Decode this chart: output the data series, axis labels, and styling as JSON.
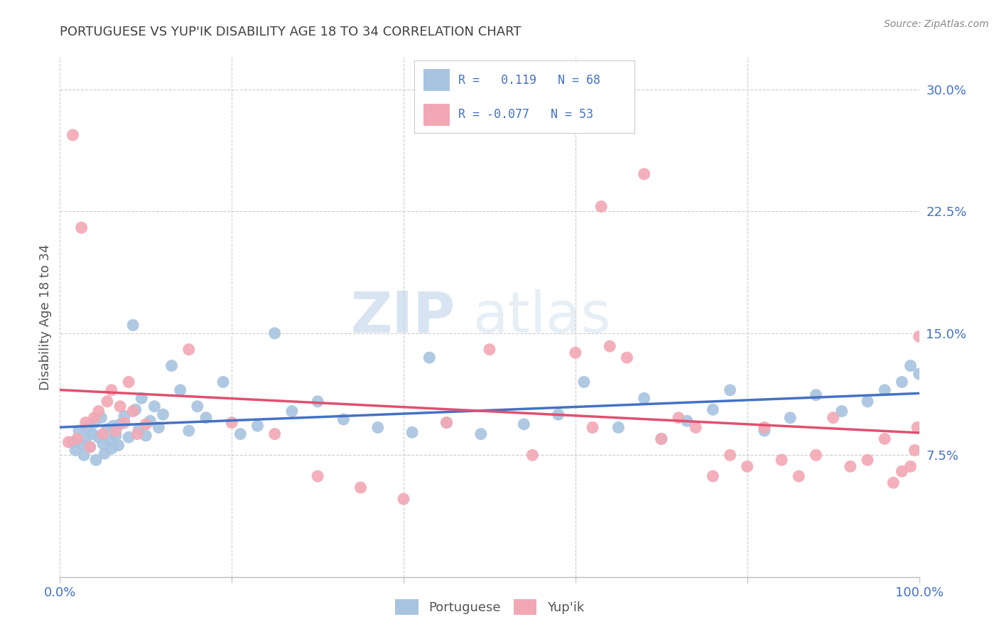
{
  "title": "PORTUGUESE VS YUP'IK DISABILITY AGE 18 TO 34 CORRELATION CHART",
  "source": "Source: ZipAtlas.com",
  "ylabel": "Disability Age 18 to 34",
  "xlim": [
    0.0,
    1.0
  ],
  "ylim": [
    0.0,
    0.32
  ],
  "xtick_positions": [
    0.0,
    0.2,
    0.4,
    0.6,
    0.8,
    1.0
  ],
  "xtick_labels": [
    "0.0%",
    "",
    "",
    "",
    "",
    "100.0%"
  ],
  "ytick_vals": [
    0.075,
    0.15,
    0.225,
    0.3
  ],
  "ytick_labels": [
    "7.5%",
    "15.0%",
    "22.5%",
    "30.0%"
  ],
  "watermark_zip": "ZIP",
  "watermark_atlas": "atlas",
  "portuguese_R": 0.119,
  "portuguese_N": 68,
  "yupik_R": -0.077,
  "yupik_N": 53,
  "portuguese_color": "#a8c4e0",
  "yupik_color": "#f2a8b4",
  "portuguese_line_color": "#4472c4",
  "yupik_line_color": "#e05070",
  "portuguese_line_dashed": false,
  "yupik_line_dashed": false,
  "background_color": "#ffffff",
  "grid_color": "#cccccc",
  "title_color": "#404040",
  "axis_label_color": "#4472c4",
  "xtick_color": "#4472c4",
  "legend_border_color": "#cccccc",
  "port_x": [
    0.015,
    0.018,
    0.022,
    0.025,
    0.028,
    0.03,
    0.032,
    0.035,
    0.038,
    0.04,
    0.042,
    0.045,
    0.048,
    0.05,
    0.052,
    0.055,
    0.058,
    0.06,
    0.062,
    0.065,
    0.068,
    0.07,
    0.075,
    0.08,
    0.085,
    0.088,
    0.092,
    0.095,
    0.1,
    0.105,
    0.11,
    0.115,
    0.12,
    0.13,
    0.14,
    0.15,
    0.16,
    0.17,
    0.19,
    0.21,
    0.23,
    0.25,
    0.27,
    0.3,
    0.33,
    0.37,
    0.41,
    0.45,
    0.49,
    0.54,
    0.58,
    0.61,
    0.65,
    0.68,
    0.7,
    0.73,
    0.76,
    0.78,
    0.82,
    0.85,
    0.88,
    0.91,
    0.94,
    0.96,
    0.98,
    0.99,
    1.0,
    0.43
  ],
  "port_y": [
    0.083,
    0.078,
    0.09,
    0.082,
    0.075,
    0.085,
    0.092,
    0.08,
    0.088,
    0.095,
    0.072,
    0.086,
    0.098,
    0.082,
    0.076,
    0.091,
    0.084,
    0.079,
    0.093,
    0.087,
    0.081,
    0.094,
    0.099,
    0.086,
    0.155,
    0.103,
    0.091,
    0.11,
    0.087,
    0.096,
    0.105,
    0.092,
    0.1,
    0.13,
    0.115,
    0.09,
    0.105,
    0.098,
    0.12,
    0.088,
    0.093,
    0.15,
    0.102,
    0.108,
    0.097,
    0.092,
    0.089,
    0.095,
    0.088,
    0.094,
    0.1,
    0.12,
    0.092,
    0.11,
    0.085,
    0.096,
    0.103,
    0.115,
    0.09,
    0.098,
    0.112,
    0.102,
    0.108,
    0.115,
    0.12,
    0.13,
    0.125,
    0.135
  ],
  "yupik_x": [
    0.01,
    0.015,
    0.02,
    0.025,
    0.03,
    0.035,
    0.04,
    0.045,
    0.05,
    0.055,
    0.06,
    0.065,
    0.07,
    0.075,
    0.08,
    0.085,
    0.09,
    0.1,
    0.15,
    0.2,
    0.25,
    0.3,
    0.35,
    0.4,
    0.45,
    0.5,
    0.55,
    0.6,
    0.62,
    0.64,
    0.66,
    0.68,
    0.7,
    0.72,
    0.74,
    0.76,
    0.78,
    0.8,
    0.82,
    0.84,
    0.86,
    0.88,
    0.9,
    0.92,
    0.94,
    0.96,
    0.97,
    0.98,
    0.99,
    0.995,
    0.998,
    1.0,
    0.63
  ],
  "yupik_y": [
    0.083,
    0.272,
    0.085,
    0.215,
    0.095,
    0.08,
    0.098,
    0.102,
    0.088,
    0.108,
    0.115,
    0.09,
    0.105,
    0.095,
    0.12,
    0.102,
    0.088,
    0.094,
    0.14,
    0.095,
    0.088,
    0.062,
    0.055,
    0.048,
    0.095,
    0.14,
    0.075,
    0.138,
    0.092,
    0.142,
    0.135,
    0.248,
    0.085,
    0.098,
    0.092,
    0.062,
    0.075,
    0.068,
    0.092,
    0.072,
    0.062,
    0.075,
    0.098,
    0.068,
    0.072,
    0.085,
    0.058,
    0.065,
    0.068,
    0.078,
    0.092,
    0.148,
    0.228
  ]
}
